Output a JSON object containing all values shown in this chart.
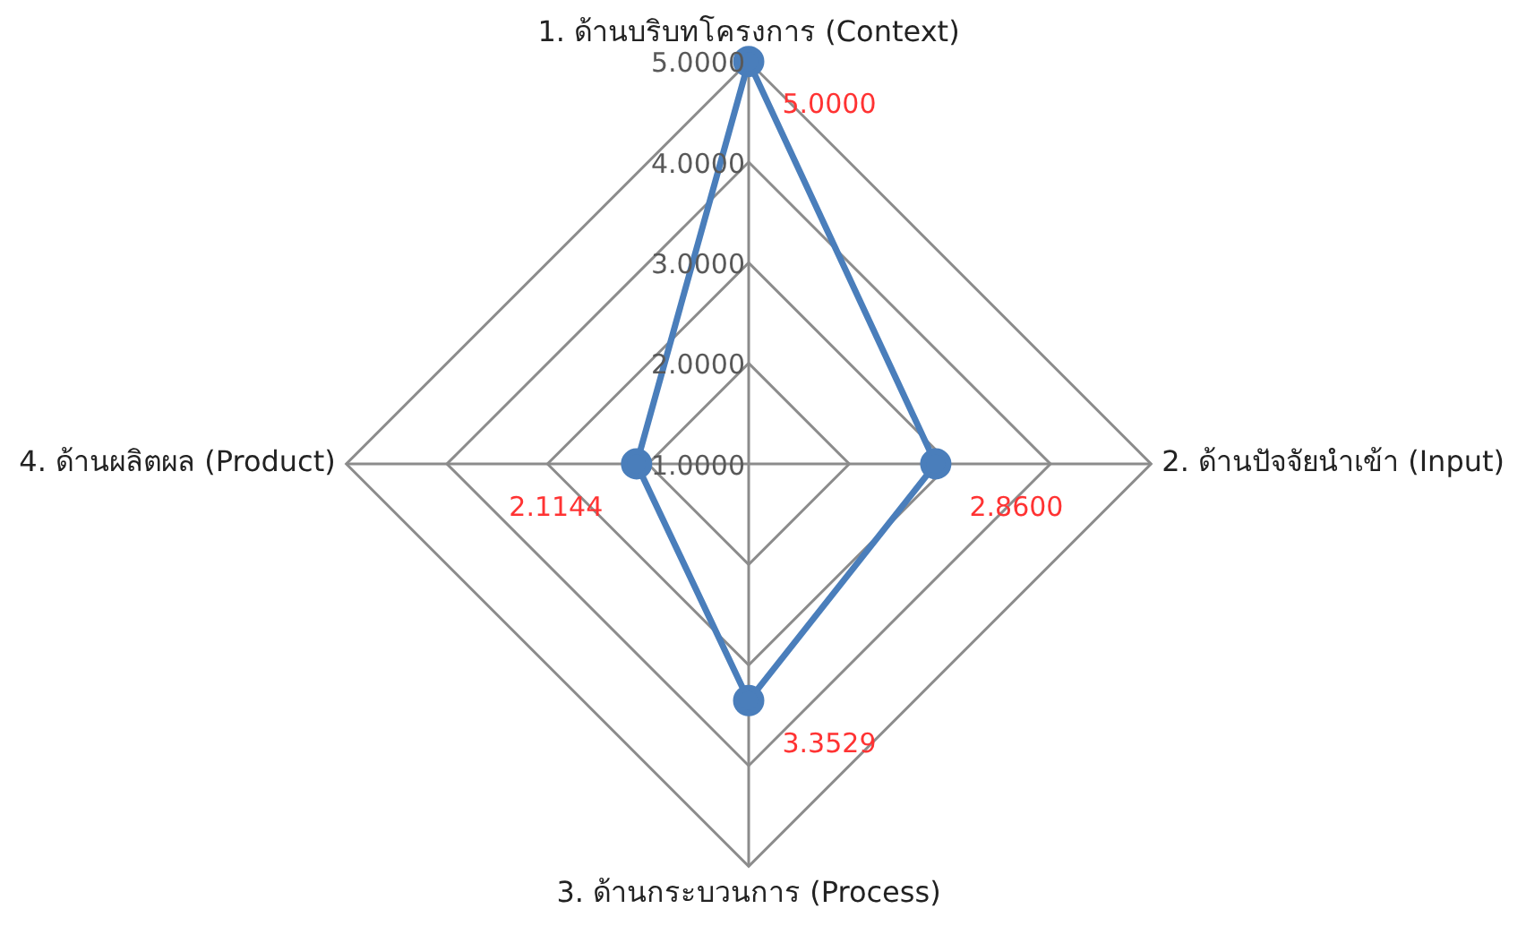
{
  "chart_data": {
    "type": "radar",
    "categories": [
      "1. ด้านบริบทโครงการ (Context)",
      "2. ด้านปัจจัยนำเข้า (Input)",
      "3. ด้านกระบวนการ (Process)",
      "4. ด้านผลิตผล (Product)"
    ],
    "series": [
      {
        "color": "#4a7ebb",
        "values": [
          5,
          2.86,
          3.3529,
          2.1144
        ],
        "value_labels": [
          "5.0000",
          "2.8600",
          "3.3529",
          "2.1144"
        ]
      }
    ],
    "ylim": [
      1,
      5
    ],
    "yticks": [
      {
        "value": 1,
        "label": "1.0000"
      },
      {
        "value": 2,
        "label": "2.0000"
      },
      {
        "value": 3,
        "label": "3.0000"
      },
      {
        "value": 4,
        "label": "4.0000"
      },
      {
        "value": 5,
        "label": "5.0000"
      }
    ],
    "grid": true,
    "marker": "circle",
    "legend": false
  }
}
